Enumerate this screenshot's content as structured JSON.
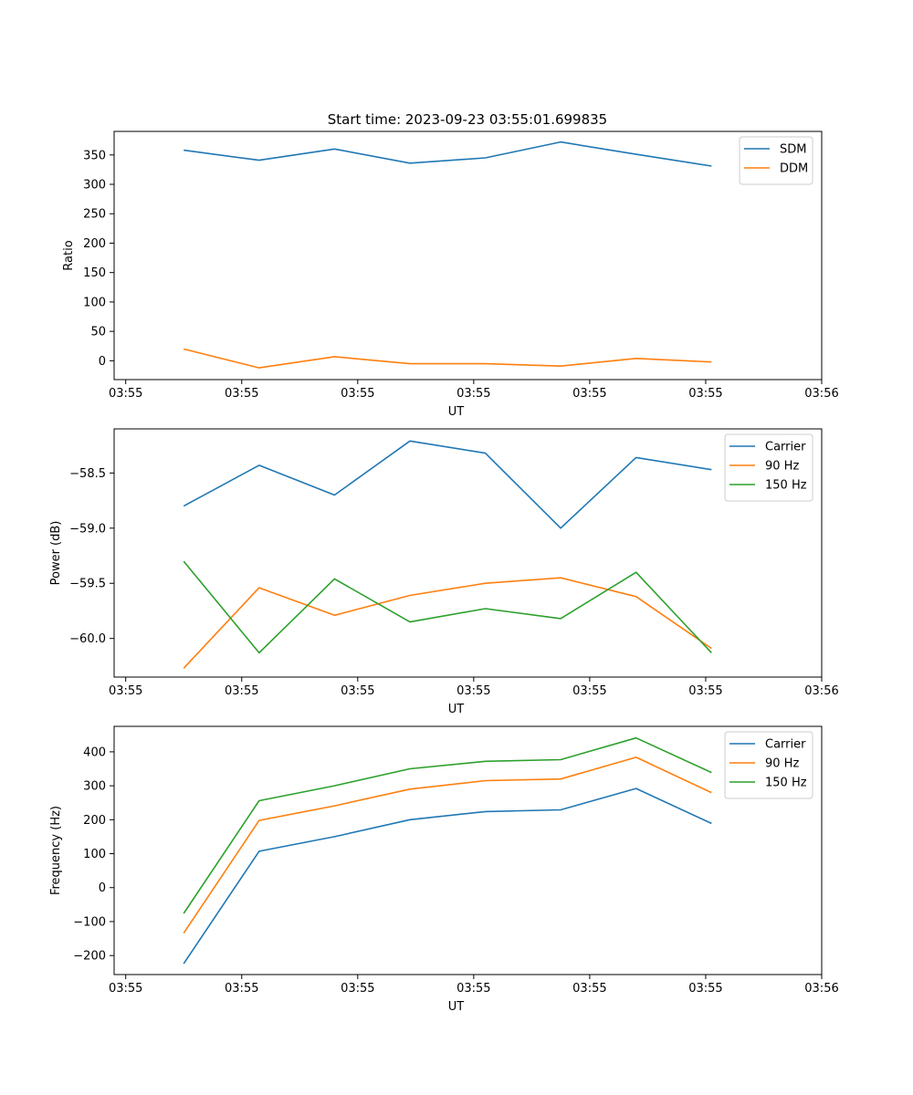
{
  "title": "Start time: 2023-09-23 03:55:01.699835",
  "x_tick_labels": [
    "03:55",
    "03:55",
    "03:55",
    "03:55",
    "03:55",
    "03:55",
    "03:56"
  ],
  "colors": {
    "blue": "#1f77b4",
    "orange": "#ff7f0e",
    "green": "#2ca02c"
  },
  "chart_data": [
    {
      "type": "line",
      "title": "Start time: 2023-09-23 03:55:01.699835",
      "xlabel": "UT",
      "ylabel": "Ratio",
      "x": [
        0.5,
        1.15,
        1.8,
        2.45,
        3.1,
        3.75,
        4.4,
        5.05
      ],
      "xlim": [
        -0.1,
        6.0
      ],
      "ylim": [
        -32,
        390
      ],
      "yticks": [
        0,
        50,
        100,
        150,
        200,
        250,
        300,
        350
      ],
      "ytick_labels": [
        "0",
        "50",
        "100",
        "150",
        "200",
        "250",
        "300",
        "350"
      ],
      "legend_position": "top-right",
      "series": [
        {
          "name": "SDM",
          "color": "#1f77b4",
          "values": [
            358,
            341,
            360,
            336,
            345,
            372,
            351,
            331
          ]
        },
        {
          "name": "DDM",
          "color": "#ff7f0e",
          "values": [
            20,
            -12,
            7,
            -5,
            -5,
            -9,
            4,
            -2
          ]
        }
      ]
    },
    {
      "type": "line",
      "title": "",
      "xlabel": "UT",
      "ylabel": "Power (dB)",
      "x": [
        0.5,
        1.15,
        1.8,
        2.45,
        3.1,
        3.75,
        4.4,
        5.05
      ],
      "xlim": [
        -0.1,
        6.0
      ],
      "ylim": [
        -60.35,
        -58.1
      ],
      "yticks": [
        -60.0,
        -59.5,
        -59.0,
        -58.5
      ],
      "ytick_labels": [
        "−60.0",
        "−59.5",
        "−59.0",
        "−58.5"
      ],
      "legend_position": "top-right",
      "series": [
        {
          "name": "Carrier",
          "color": "#1f77b4",
          "values": [
            -58.8,
            -58.43,
            -58.7,
            -58.21,
            -58.32,
            -59.0,
            -58.36,
            -58.47
          ]
        },
        {
          "name": "90 Hz",
          "color": "#ff7f0e",
          "values": [
            -60.27,
            -59.54,
            -59.79,
            -59.61,
            -59.5,
            -59.45,
            -59.62,
            -60.09
          ]
        },
        {
          "name": "150 Hz",
          "color": "#2ca02c",
          "values": [
            -59.3,
            -60.13,
            -59.46,
            -59.85,
            -59.73,
            -59.82,
            -59.4,
            -60.13
          ]
        }
      ]
    },
    {
      "type": "line",
      "title": "",
      "xlabel": "UT",
      "ylabel": "Frequency (Hz)",
      "x": [
        0.5,
        1.15,
        1.8,
        2.45,
        3.1,
        3.75,
        4.4,
        5.05
      ],
      "xlim": [
        -0.1,
        6.0
      ],
      "ylim": [
        -256,
        475
      ],
      "yticks": [
        -200,
        -100,
        0,
        100,
        200,
        300,
        400
      ],
      "ytick_labels": [
        "−200",
        "−100",
        "0",
        "100",
        "200",
        "300",
        "400"
      ],
      "legend_position": "top-right",
      "series": [
        {
          "name": "Carrier",
          "color": "#1f77b4",
          "values": [
            -224,
            107,
            150,
            200,
            224,
            229,
            292,
            189
          ]
        },
        {
          "name": "90 Hz",
          "color": "#ff7f0e",
          "values": [
            -134,
            198,
            241,
            290,
            315,
            320,
            384,
            280
          ]
        },
        {
          "name": "150 Hz",
          "color": "#2ca02c",
          "values": [
            -76,
            256,
            300,
            350,
            372,
            377,
            441,
            339
          ]
        }
      ]
    }
  ]
}
